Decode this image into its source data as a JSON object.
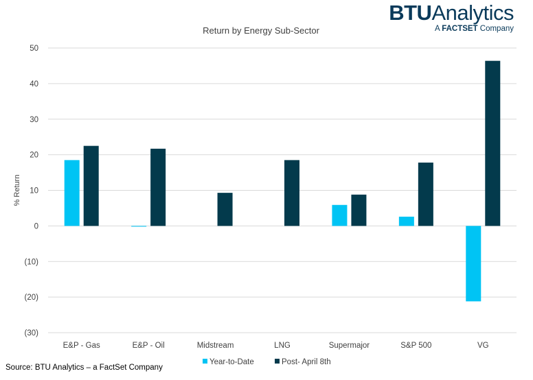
{
  "logo": {
    "brand": "BTU",
    "name": "Analytics",
    "sub_a": "A",
    "sub_brand": "FACTSET",
    "sub_company": "Company"
  },
  "source": "Source: BTU Analytics – a FactSet Company",
  "colors": {
    "ytd": "#00c4f4",
    "post": "#033a4c",
    "grid": "#d9d9d9"
  },
  "chart_data": {
    "type": "bar",
    "title": "Return by Energy Sub-Sector",
    "ylabel": "% Return",
    "xlabel": "",
    "ylim": [
      -30,
      50
    ],
    "yticks": [
      50,
      40,
      30,
      20,
      10,
      0,
      -10,
      -20,
      -30
    ],
    "ytick_labels": [
      "50",
      "40",
      "30",
      "20",
      "10",
      "0",
      "(10)",
      "(20)",
      "(30)"
    ],
    "categories": [
      "E&P - Gas",
      "E&P - Oil",
      "Midstream",
      "LNG",
      "Supermajor",
      "S&P 500",
      "VG"
    ],
    "series": [
      {
        "name": "Year-to-Date",
        "color": "#00c4f4",
        "values": [
          18.5,
          -0.2,
          0,
          0,
          5.9,
          2.6,
          -21.2
        ]
      },
      {
        "name": "Post- April 8th",
        "color": "#033a4c",
        "values": [
          22.5,
          21.7,
          9.3,
          18.5,
          8.8,
          17.8,
          46.4
        ]
      }
    ],
    "legend": "bottom",
    "grid": true
  }
}
